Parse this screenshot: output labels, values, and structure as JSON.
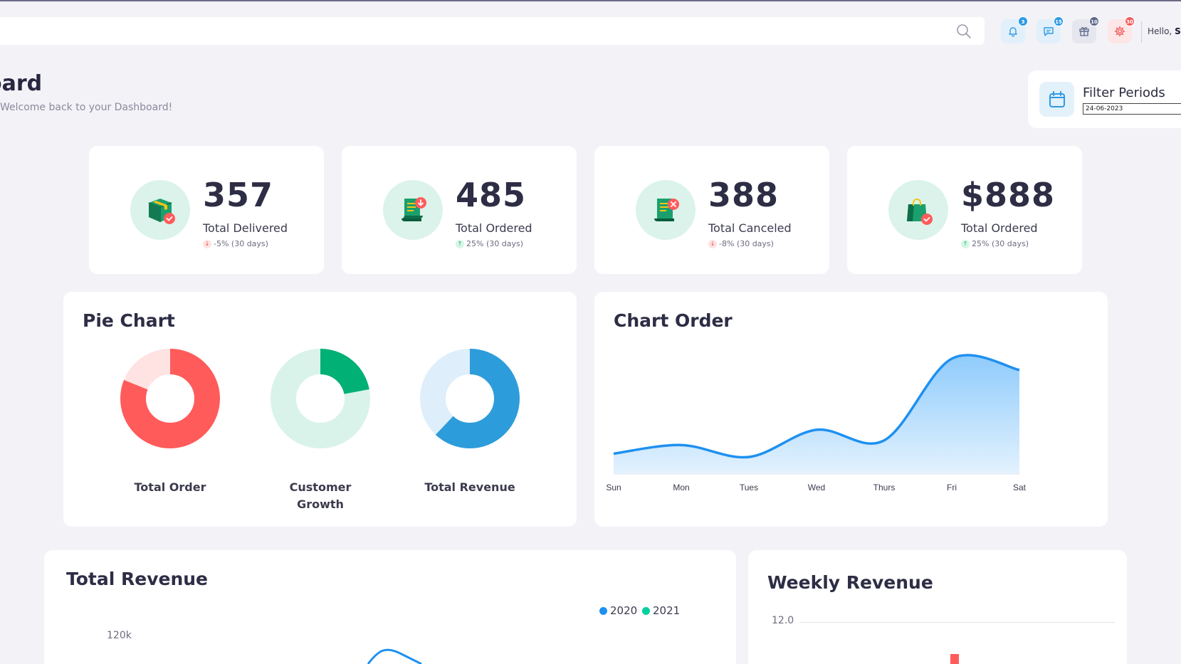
{
  "header": {
    "search": {
      "placeholder": ""
    },
    "notifications": [
      {
        "name": "bell-icon",
        "count": "3",
        "bg": "#e2f0fb",
        "color": "#2e9ae5"
      },
      {
        "name": "chat-icon",
        "count": "15",
        "bg": "#e2f0fb",
        "color": "#2e9ae5"
      },
      {
        "name": "gift-icon",
        "count": "10",
        "bg": "#e6e6ee",
        "color": "#5c6a8a"
      },
      {
        "name": "gear-icon",
        "count": "30",
        "bg": "#fde6e6",
        "color": "#f25c5c"
      }
    ],
    "greeting": "Hello,",
    "user_name": "Su"
  },
  "page": {
    "title": "oard",
    "subtitle": "Welcome back to your Dashboard!"
  },
  "filter": {
    "label": "Filter Periods",
    "date": "24-06-2023"
  },
  "stats": [
    {
      "value": "357",
      "label": "Total Delivered",
      "change": "-5% (30 days)",
      "trend": "down",
      "icon": "box-icon"
    },
    {
      "value": "485",
      "label": "Total Ordered",
      "change": "25% (30 days)",
      "trend": "up",
      "icon": "receipt-download-icon"
    },
    {
      "value": "388",
      "label": "Total Canceled",
      "change": "-8% (30 days)",
      "trend": "down",
      "icon": "receipt-cancel-icon"
    },
    {
      "value": "$888",
      "label": "Total Ordered",
      "change": "25% (30 days)",
      "trend": "up",
      "icon": "shopping-bag-icon"
    }
  ],
  "pie_card": {
    "title": "Pie Chart",
    "donuts": [
      {
        "label": "Total Order",
        "percent": 81,
        "color": "#ff5b5b",
        "track": "#ffe2e2"
      },
      {
        "label": "Customer Growth",
        "percent": 22,
        "color": "#00b074",
        "track": "#d9f3ea"
      },
      {
        "label": "Total Revenue",
        "percent": 62,
        "color": "#2d9cdb",
        "track": "#deeefa"
      }
    ]
  },
  "chart_order": {
    "title": "Chart Order"
  },
  "total_revenue": {
    "title": "Total Revenue",
    "legend": [
      {
        "label": "2020",
        "color": "#2d9cdb"
      },
      {
        "label": "2021",
        "color": "#00d19d"
      }
    ],
    "ytick": "120k"
  },
  "weekly_revenue": {
    "title": "Weekly Revenue",
    "ytick": "12.0"
  },
  "chart_data": [
    {
      "type": "area",
      "title": "Chart Order",
      "categories": [
        "Sun",
        "Mon",
        "Tues",
        "Wed",
        "Thurs",
        "Fri",
        "Sat"
      ],
      "values": [
        2.2,
        3.5,
        1.7,
        5.8,
        4.2,
        16.5,
        14.8
      ],
      "ylim": [
        0,
        18
      ],
      "color": "#1e90f0",
      "fill": "#c3e1fb",
      "grid": false
    }
  ]
}
